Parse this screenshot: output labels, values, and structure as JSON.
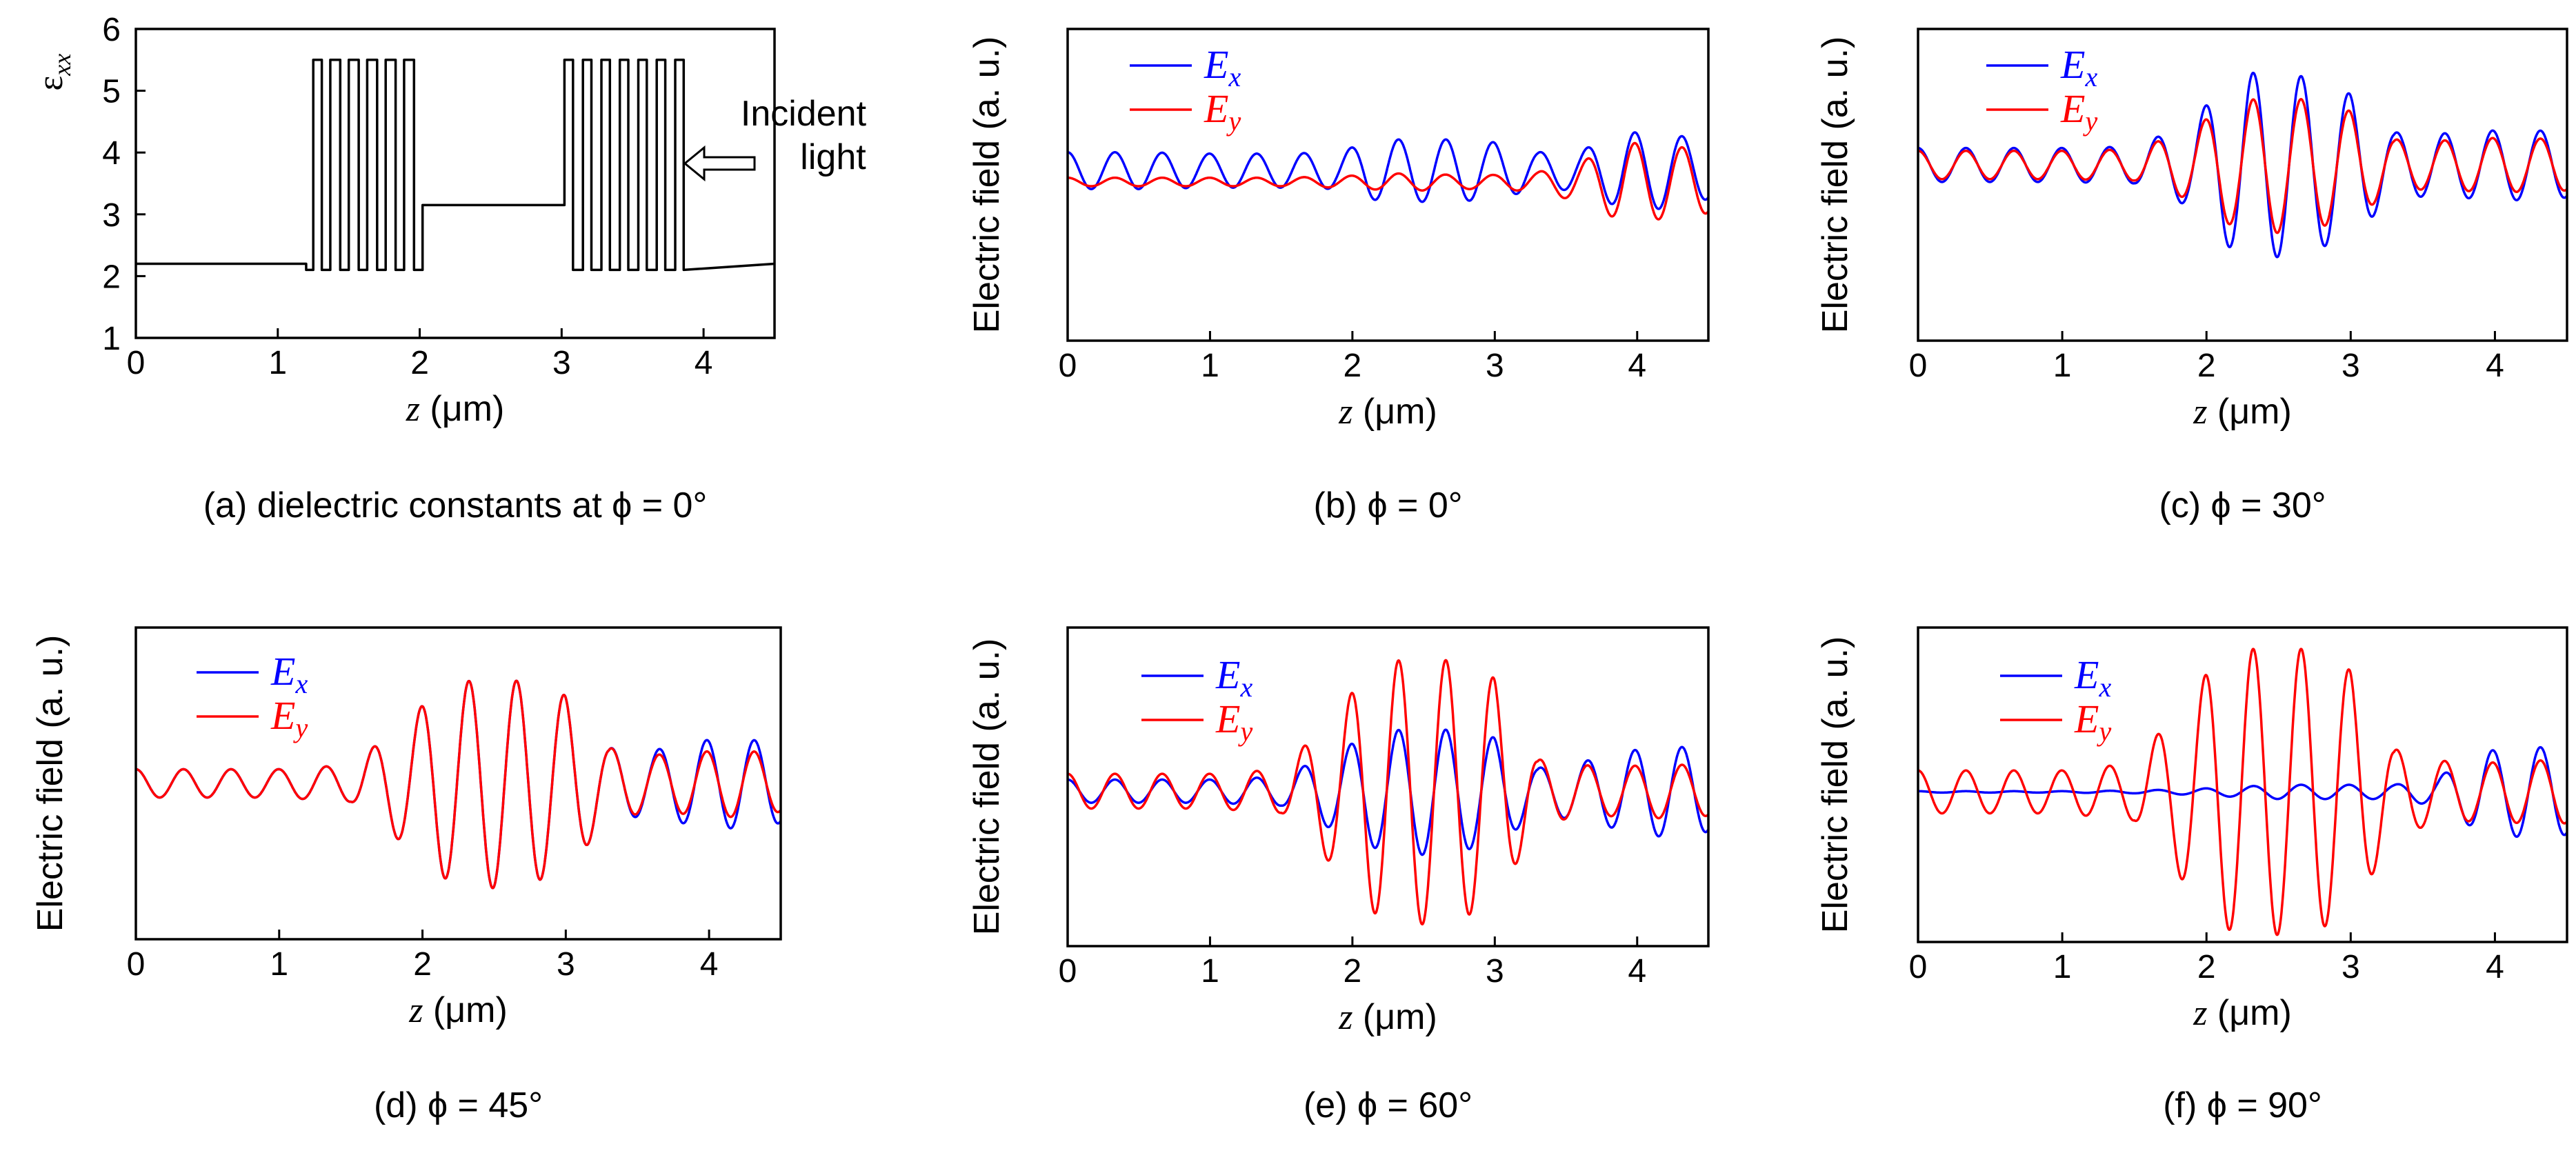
{
  "figure_title": "",
  "chart_data": [
    {
      "id": "a",
      "type": "line",
      "caption": "(a) dielectric constants at ϕ = 0°",
      "ylabel": "εxx",
      "xlabel": "z (μm)",
      "xlim": [
        0,
        4.5
      ],
      "ylim": [
        1,
        6
      ],
      "xticks": [
        0,
        1,
        2,
        3,
        4
      ],
      "yticks": [
        1,
        2,
        3,
        4,
        5,
        6
      ],
      "annotation": {
        "text_lines": [
          "Incident",
          "light"
        ],
        "arrow": "left"
      },
      "series": [
        {
          "name": "εxx",
          "color": "#000000",
          "x": [
            0,
            1.2,
            1.2,
            1.25,
            1.25,
            1.31,
            1.31,
            1.37,
            1.37,
            1.44,
            1.44,
            1.5,
            1.5,
            1.57,
            1.57,
            1.63,
            1.63,
            1.7,
            1.7,
            1.76,
            1.76,
            1.83,
            1.83,
            1.89,
            1.89,
            1.96,
            1.96,
            2.02,
            2.02,
            3.02,
            3.02,
            3.08,
            3.08,
            3.15,
            3.15,
            3.21,
            3.21,
            3.28,
            3.28,
            3.34,
            3.34,
            3.41,
            3.41,
            3.47,
            3.47,
            3.54,
            3.54,
            3.6,
            3.6,
            3.67,
            3.67,
            3.73,
            3.73,
            3.8,
            3.8,
            3.86,
            3.86,
            4.5
          ],
          "y": [
            2.2,
            2.2,
            2.1,
            2.1,
            5.5,
            5.5,
            2.1,
            2.1,
            5.5,
            5.5,
            2.1,
            2.1,
            5.5,
            5.5,
            2.1,
            2.1,
            5.5,
            5.5,
            2.1,
            2.1,
            5.5,
            5.5,
            2.1,
            2.1,
            5.5,
            5.5,
            2.1,
            2.1,
            3.15,
            3.15,
            5.5,
            5.5,
            2.1,
            2.1,
            5.5,
            5.5,
            2.1,
            2.1,
            5.5,
            5.5,
            2.1,
            2.1,
            5.5,
            5.5,
            2.1,
            2.1,
            5.5,
            5.5,
            2.1,
            2.1,
            5.5,
            5.5,
            2.1,
            2.1,
            5.5,
            5.5,
            2.1,
            2.2
          ]
        }
      ]
    },
    {
      "id": "b",
      "type": "line",
      "caption": "(b) ϕ = 0°",
      "ylabel": "Electric field (a. u.)",
      "xlabel": "z (μm)",
      "xlim": [
        0,
        4.5
      ],
      "ylim": [
        -1.1,
        1.1
      ],
      "xticks": [
        0,
        1,
        2,
        3,
        4
      ],
      "legend": [
        "Ex",
        "Ey"
      ],
      "envelope_points": [
        0,
        0.5,
        1,
        1.5,
        1.9,
        2.1,
        2.3,
        2.5,
        2.7,
        3.0,
        3.3,
        3.6,
        3.9,
        4.2,
        4.5
      ],
      "series": [
        {
          "name": "Ex",
          "color": "#0000ff",
          "baseline": 0.1,
          "amp": [
            0.13,
            0.13,
            0.12,
            0.12,
            0.13,
            0.2,
            0.22,
            0.22,
            0.22,
            0.2,
            0.13,
            0.14,
            0.27,
            0.27,
            0.2
          ]
        },
        {
          "name": "Ey",
          "color": "#ff0000",
          "baseline": 0.02,
          "amp": [
            0.03,
            0.03,
            0.03,
            0.03,
            0.04,
            0.05,
            0.06,
            0.06,
            0.05,
            0.05,
            0.07,
            0.14,
            0.28,
            0.26,
            0.22
          ]
        }
      ]
    },
    {
      "id": "c",
      "type": "line",
      "caption": "(c) ϕ = 30°",
      "ylabel": "Electric field (a. u.)",
      "xlabel": "z (μm)",
      "xlim": [
        0,
        4.5
      ],
      "ylim": [
        -1.1,
        1.1
      ],
      "xticks": [
        0,
        1,
        2,
        3,
        4
      ],
      "legend": [
        "Ex",
        "Ey"
      ],
      "envelope_points": [
        0,
        0.5,
        1,
        1.5,
        1.9,
        2.1,
        2.3,
        2.5,
        2.7,
        3.0,
        3.3,
        3.6,
        3.9,
        4.2,
        4.5
      ],
      "series": [
        {
          "name": "Ex",
          "color": "#0000ff",
          "baseline": 0.14,
          "amp": [
            0.12,
            0.12,
            0.12,
            0.13,
            0.3,
            0.55,
            0.65,
            0.65,
            0.62,
            0.5,
            0.23,
            0.22,
            0.24,
            0.25,
            0.23
          ]
        },
        {
          "name": "Ey",
          "color": "#ff0000",
          "baseline": 0.14,
          "amp": [
            0.1,
            0.1,
            0.1,
            0.11,
            0.25,
            0.4,
            0.46,
            0.48,
            0.46,
            0.38,
            0.18,
            0.17,
            0.19,
            0.19,
            0.18
          ]
        }
      ]
    },
    {
      "id": "d",
      "type": "line",
      "caption": "(d) ϕ = 45°",
      "ylabel": "Electric field (a. u.)",
      "xlabel": "z (μm)",
      "xlim": [
        0,
        4.5
      ],
      "ylim": [
        -1.1,
        1.1
      ],
      "xticks": [
        0,
        1,
        2,
        3,
        4
      ],
      "legend": [
        "Ex",
        "Ey"
      ],
      "envelope_points": [
        0,
        0.5,
        1,
        1.5,
        1.9,
        2.1,
        2.3,
        2.5,
        2.7,
        3.0,
        3.3,
        3.6,
        3.9,
        4.2,
        4.5
      ],
      "series": [
        {
          "name": "Ex",
          "color": "#0000ff",
          "baseline": 0.0,
          "amp": [
            0.1,
            0.1,
            0.1,
            0.13,
            0.45,
            0.65,
            0.72,
            0.74,
            0.72,
            0.62,
            0.25,
            0.23,
            0.3,
            0.32,
            0.28
          ]
        },
        {
          "name": "Ey",
          "color": "#ff0000",
          "baseline": 0.0,
          "amp": [
            0.1,
            0.1,
            0.1,
            0.13,
            0.45,
            0.65,
            0.72,
            0.74,
            0.72,
            0.62,
            0.25,
            0.2,
            0.22,
            0.24,
            0.2
          ]
        }
      ]
    },
    {
      "id": "e",
      "type": "line",
      "caption": "(e) ϕ = 60°",
      "ylabel": "Electric field (a. u.)",
      "xlabel": "z (μm)",
      "xlim": [
        0,
        4.5
      ],
      "ylim": [
        -1.1,
        1.1
      ],
      "xticks": [
        0,
        1,
        2,
        3,
        4
      ],
      "legend": [
        "Ex",
        "Ey"
      ],
      "envelope_points": [
        0,
        0.5,
        1,
        1.5,
        1.9,
        2.1,
        2.3,
        2.5,
        2.7,
        3.0,
        3.3,
        3.6,
        3.9,
        4.2,
        4.5
      ],
      "series": [
        {
          "name": "Ex",
          "color": "#0000ff",
          "baseline": -0.03,
          "amp": [
            0.08,
            0.08,
            0.08,
            0.1,
            0.28,
            0.38,
            0.42,
            0.44,
            0.42,
            0.37,
            0.16,
            0.2,
            0.27,
            0.32,
            0.28
          ]
        },
        {
          "name": "Ey",
          "color": "#ff0000",
          "baseline": -0.03,
          "amp": [
            0.12,
            0.12,
            0.12,
            0.15,
            0.55,
            0.82,
            0.9,
            0.92,
            0.9,
            0.78,
            0.22,
            0.18,
            0.17,
            0.19,
            0.17
          ]
        }
      ]
    },
    {
      "id": "f",
      "type": "line",
      "caption": "(f) ϕ = 90°",
      "ylabel": "Electric field (a. u.)",
      "xlabel": "z (μm)",
      "xlim": [
        0,
        4.5
      ],
      "ylim": [
        -1.1,
        1.1
      ],
      "xticks": [
        0,
        1,
        2,
        3,
        4
      ],
      "legend": [
        "Ex",
        "Ey"
      ],
      "envelope_points": [
        0,
        0.5,
        1,
        1.5,
        1.9,
        2.1,
        2.3,
        2.5,
        2.7,
        3.0,
        3.3,
        3.6,
        3.9,
        4.2,
        4.5
      ],
      "series": [
        {
          "name": "Ex",
          "color": "#0000ff",
          "baseline": -0.05,
          "amp": [
            0.005,
            0.005,
            0.005,
            0.01,
            0.02,
            0.03,
            0.04,
            0.05,
            0.05,
            0.05,
            0.05,
            0.1,
            0.28,
            0.32,
            0.3
          ]
        },
        {
          "name": "Ey",
          "color": "#ff0000",
          "baseline": -0.05,
          "amp": [
            0.15,
            0.15,
            0.15,
            0.2,
            0.7,
            0.95,
            1.0,
            1.0,
            1.0,
            0.85,
            0.3,
            0.22,
            0.2,
            0.22,
            0.22
          ]
        }
      ]
    }
  ]
}
